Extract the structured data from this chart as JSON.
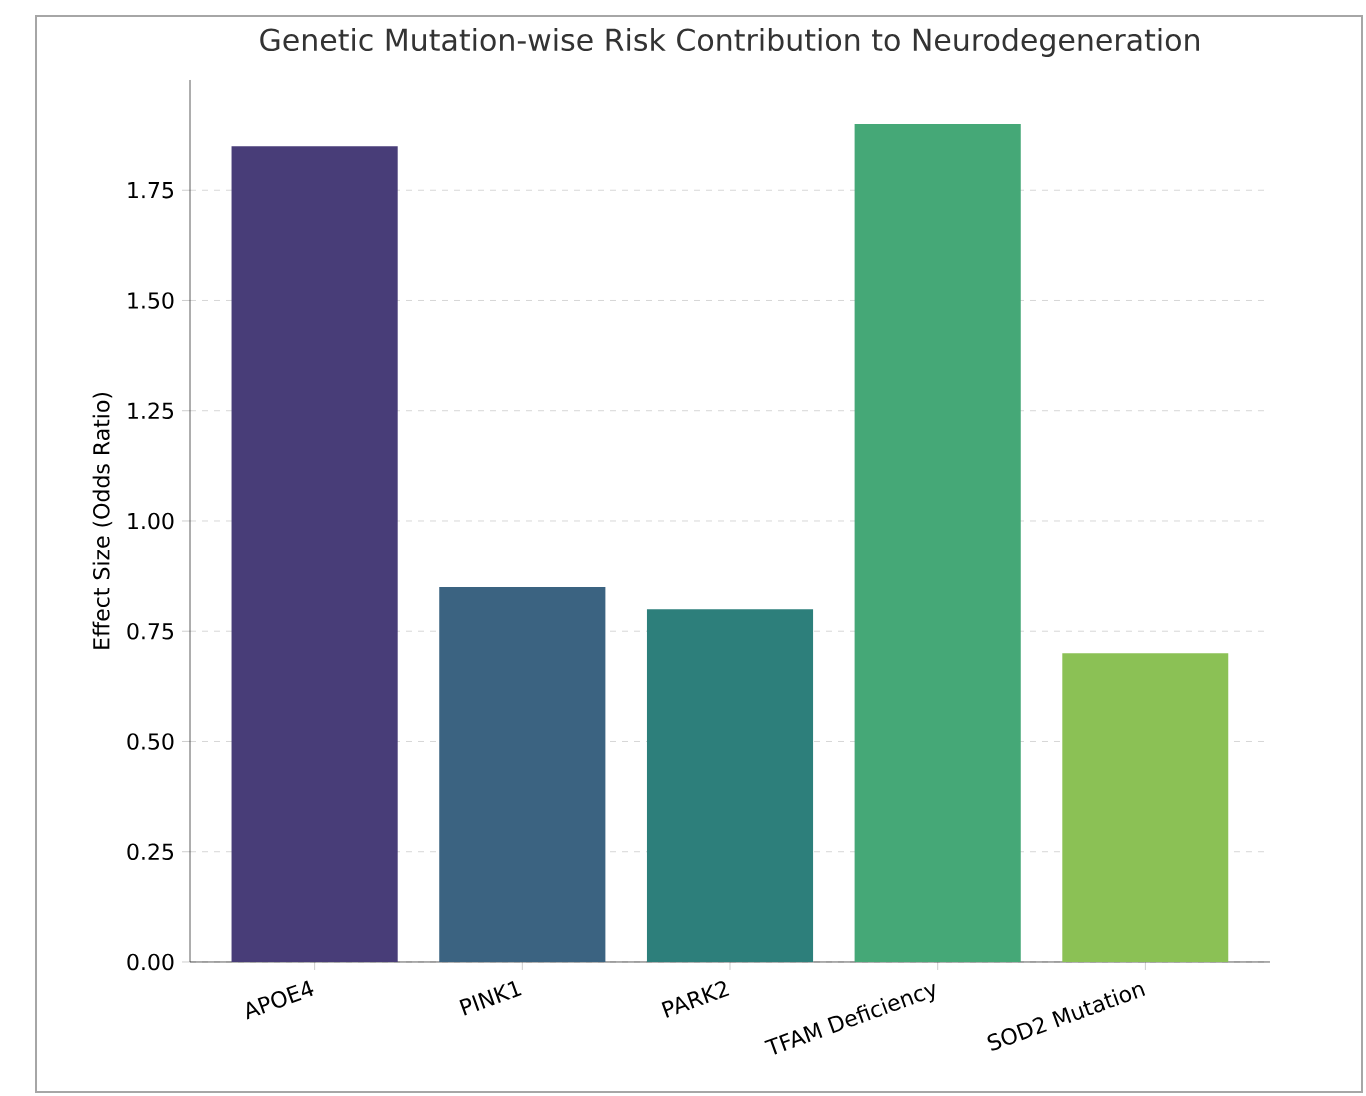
{
  "chart_data": {
    "type": "bar",
    "title": "Genetic Mutation-wise Risk Contribution to Neurodegeneration",
    "ylabel": "Effect Size (Odds Ratio)",
    "categories": [
      "APOE4",
      "PINK1",
      "PARK2",
      "TFAM Deficiency",
      "SOD2 Mutation"
    ],
    "values": [
      1.85,
      0.85,
      0.8,
      1.9,
      0.7
    ],
    "colors": [
      "#483d78",
      "#3b6381",
      "#2d7f7b",
      "#45a877",
      "#8bc155"
    ],
    "ylim": [
      0,
      2.0
    ],
    "yticks": [
      {
        "value": 0,
        "label": "0.00"
      },
      {
        "value": 0.25,
        "label": "0.25"
      },
      {
        "value": 0.5,
        "label": "0.50"
      },
      {
        "value": 0.75,
        "label": "0.75"
      },
      {
        "value": 1,
        "label": "1.00"
      },
      {
        "value": 1.25,
        "label": "1.25"
      },
      {
        "value": 1.5,
        "label": "1.50"
      },
      {
        "value": 1.75,
        "label": "1.75"
      }
    ],
    "grid": "y"
  }
}
